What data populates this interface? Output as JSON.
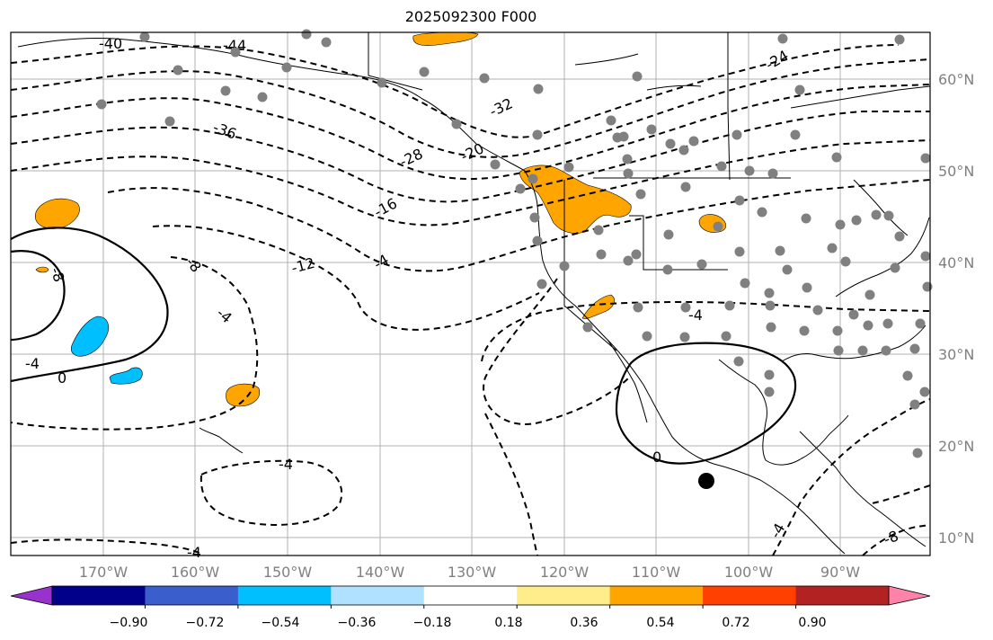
{
  "title": "2025092300 F000",
  "lat_labels": [
    "60°N",
    "50°N",
    "40°N",
    "30°N",
    "20°N",
    "10°N"
  ],
  "lon_labels": [
    "170°W",
    "160°W",
    "150°W",
    "140°W",
    "130°W",
    "120°W",
    "110°W",
    "100°W",
    "90°W"
  ],
  "contour_labels": [
    "-40",
    "-44",
    "-36",
    "-32",
    "-24",
    "-28",
    "-20",
    "-16",
    "-12",
    "-8",
    "-8",
    "-4",
    "-4",
    "-4",
    "-4",
    "-4",
    "-4",
    "-4",
    "-8",
    "0",
    "0"
  ],
  "colorbar": {
    "ticks": [
      "−0.90",
      "−0.72",
      "−0.54",
      "−0.36",
      "−0.18",
      "0.18",
      "0.36",
      "0.54",
      "0.72",
      "0.90"
    ],
    "colors": [
      "#9932cc",
      "#00008b",
      "#3a5fcd",
      "#00bfff",
      "#b0e2ff",
      "#ffffff",
      "#ffec8b",
      "#ffa500",
      "#ff4000",
      "#b22222",
      "#ff82ab"
    ]
  },
  "colors": {
    "orange_fill": "#ffa500",
    "blue_fill": "#00bfff",
    "station": "#808080",
    "grid": "#b0b0b0"
  }
}
